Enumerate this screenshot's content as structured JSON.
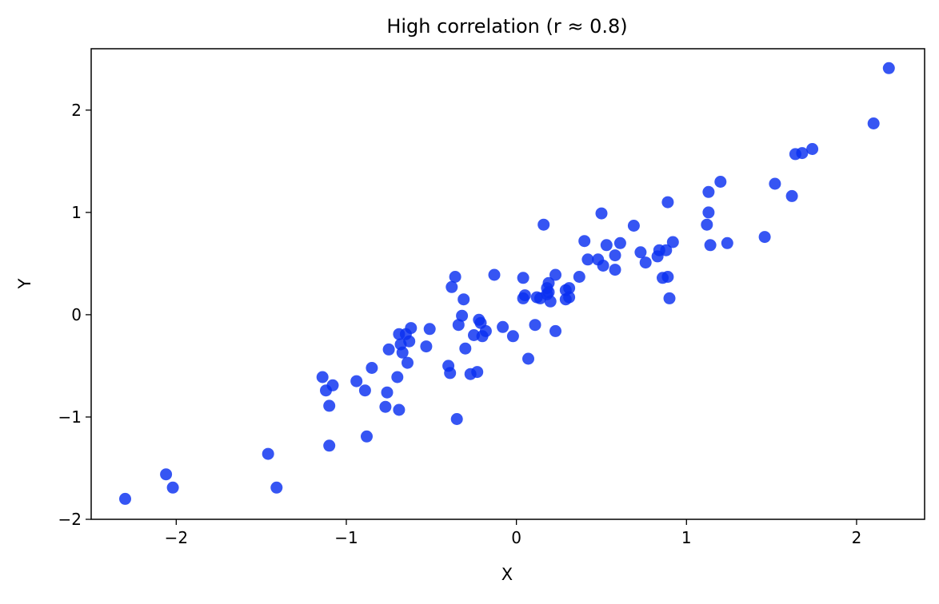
{
  "chart_data": {
    "type": "scatter",
    "title": "High correlation (r ≈ 0.8)",
    "xlabel": "X",
    "ylabel": "Y",
    "xlim": [
      -2.5,
      2.4
    ],
    "ylim": [
      -2.0,
      2.6
    ],
    "xticks": [
      -2,
      -1,
      0,
      1,
      2
    ],
    "yticks": [
      -2,
      -1,
      0,
      1,
      2
    ],
    "xtick_labels": [
      "−2",
      "−1",
      "0",
      "1",
      "2"
    ],
    "ytick_labels": [
      "−2",
      "−1",
      "0",
      "1",
      "2"
    ],
    "grid": false,
    "legend": "none",
    "marker_color": "#0a30f0",
    "points": [
      [
        -2.3,
        -1.8
      ],
      [
        -2.06,
        -1.56
      ],
      [
        -2.02,
        -1.69
      ],
      [
        -1.46,
        -1.36
      ],
      [
        -1.41,
        -1.69
      ],
      [
        -1.14,
        -0.61
      ],
      [
        -1.12,
        -0.74
      ],
      [
        -1.1,
        -0.89
      ],
      [
        -1.1,
        -1.28
      ],
      [
        -1.08,
        -0.69
      ],
      [
        -0.94,
        -0.65
      ],
      [
        -0.89,
        -0.74
      ],
      [
        -0.88,
        -1.19
      ],
      [
        -0.85,
        -0.52
      ],
      [
        -0.77,
        -0.9
      ],
      [
        -0.76,
        -0.76
      ],
      [
        -0.75,
        -0.34
      ],
      [
        -0.7,
        -0.61
      ],
      [
        -0.69,
        -0.19
      ],
      [
        -0.69,
        -0.93
      ],
      [
        -0.68,
        -0.29
      ],
      [
        -0.67,
        -0.37
      ],
      [
        -0.65,
        -0.19
      ],
      [
        -0.64,
        -0.47
      ],
      [
        -0.63,
        -0.26
      ],
      [
        -0.62,
        -0.13
      ],
      [
        -0.53,
        -0.31
      ],
      [
        -0.51,
        -0.14
      ],
      [
        -0.4,
        -0.5
      ],
      [
        -0.39,
        -0.57
      ],
      [
        -0.38,
        0.27
      ],
      [
        -0.36,
        0.37
      ],
      [
        -0.35,
        -1.02
      ],
      [
        -0.34,
        -0.1
      ],
      [
        -0.32,
        -0.01
      ],
      [
        -0.31,
        0.15
      ],
      [
        -0.3,
        -0.33
      ],
      [
        -0.27,
        -0.58
      ],
      [
        -0.25,
        -0.2
      ],
      [
        -0.23,
        -0.56
      ],
      [
        -0.22,
        -0.05
      ],
      [
        -0.21,
        -0.08
      ],
      [
        -0.2,
        -0.21
      ],
      [
        -0.18,
        -0.16
      ],
      [
        -0.13,
        0.39
      ],
      [
        -0.08,
        -0.12
      ],
      [
        -0.02,
        -0.21
      ],
      [
        0.04,
        0.36
      ],
      [
        0.04,
        0.16
      ],
      [
        0.05,
        0.19
      ],
      [
        0.07,
        -0.43
      ],
      [
        0.11,
        -0.1
      ],
      [
        0.12,
        0.17
      ],
      [
        0.14,
        0.16
      ],
      [
        0.16,
        0.88
      ],
      [
        0.18,
        0.2
      ],
      [
        0.18,
        0.26
      ],
      [
        0.19,
        0.31
      ],
      [
        0.19,
        0.22
      ],
      [
        0.2,
        0.13
      ],
      [
        0.23,
        0.39
      ],
      [
        0.23,
        -0.16
      ],
      [
        0.29,
        0.24
      ],
      [
        0.29,
        0.15
      ],
      [
        0.31,
        0.26
      ],
      [
        0.31,
        0.17
      ],
      [
        0.37,
        0.37
      ],
      [
        0.4,
        0.72
      ],
      [
        0.42,
        0.54
      ],
      [
        0.48,
        0.54
      ],
      [
        0.5,
        0.99
      ],
      [
        0.51,
        0.48
      ],
      [
        0.53,
        0.68
      ],
      [
        0.58,
        0.58
      ],
      [
        0.58,
        0.44
      ],
      [
        0.61,
        0.7
      ],
      [
        0.69,
        0.87
      ],
      [
        0.73,
        0.61
      ],
      [
        0.76,
        0.51
      ],
      [
        0.83,
        0.57
      ],
      [
        0.84,
        0.63
      ],
      [
        0.86,
        0.36
      ],
      [
        0.88,
        0.63
      ],
      [
        0.89,
        0.37
      ],
      [
        0.89,
        1.1
      ],
      [
        0.9,
        0.16
      ],
      [
        0.92,
        0.71
      ],
      [
        1.12,
        0.88
      ],
      [
        1.13,
        1.0
      ],
      [
        1.13,
        1.2
      ],
      [
        1.14,
        0.68
      ],
      [
        1.2,
        1.3
      ],
      [
        1.24,
        0.7
      ],
      [
        1.46,
        0.76
      ],
      [
        1.52,
        1.28
      ],
      [
        1.62,
        1.16
      ],
      [
        1.64,
        1.57
      ],
      [
        1.68,
        1.58
      ],
      [
        1.74,
        1.62
      ],
      [
        2.1,
        1.87
      ],
      [
        2.19,
        2.41
      ]
    ]
  }
}
